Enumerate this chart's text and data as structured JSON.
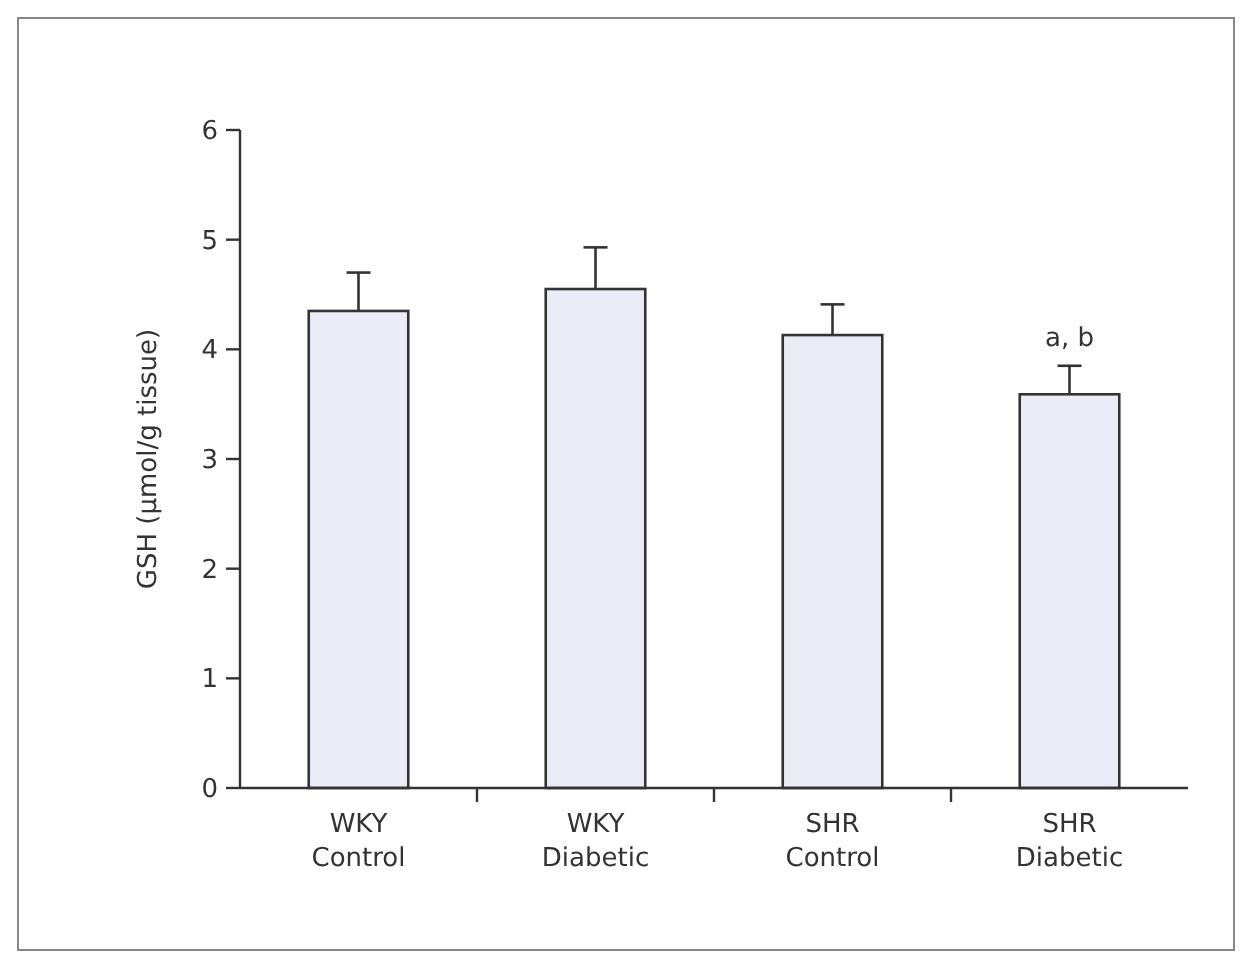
{
  "chart_data": {
    "type": "bar",
    "ylabel": "GSH (µmol/g tissue)",
    "categories": [
      "WKY\nControl",
      "WKY\nDiabetic",
      "SHR\nControl",
      "SHR\nDiabetic"
    ],
    "values": [
      4.35,
      4.55,
      4.13,
      3.59
    ],
    "errors": [
      [
        4.35,
        4.7
      ],
      [
        4.55,
        4.93
      ],
      [
        4.13,
        4.41
      ],
      [
        3.59,
        3.85
      ]
    ],
    "color": "#ececf7",
    "ylim": [
      0,
      6
    ],
    "yticks": [
      0,
      1,
      2,
      3,
      4,
      5,
      6
    ],
    "grid": false,
    "annotations": [
      {
        "text": "a, b",
        "x": "SHR\nDiabetic",
        "y": 3.85
      }
    ]
  }
}
